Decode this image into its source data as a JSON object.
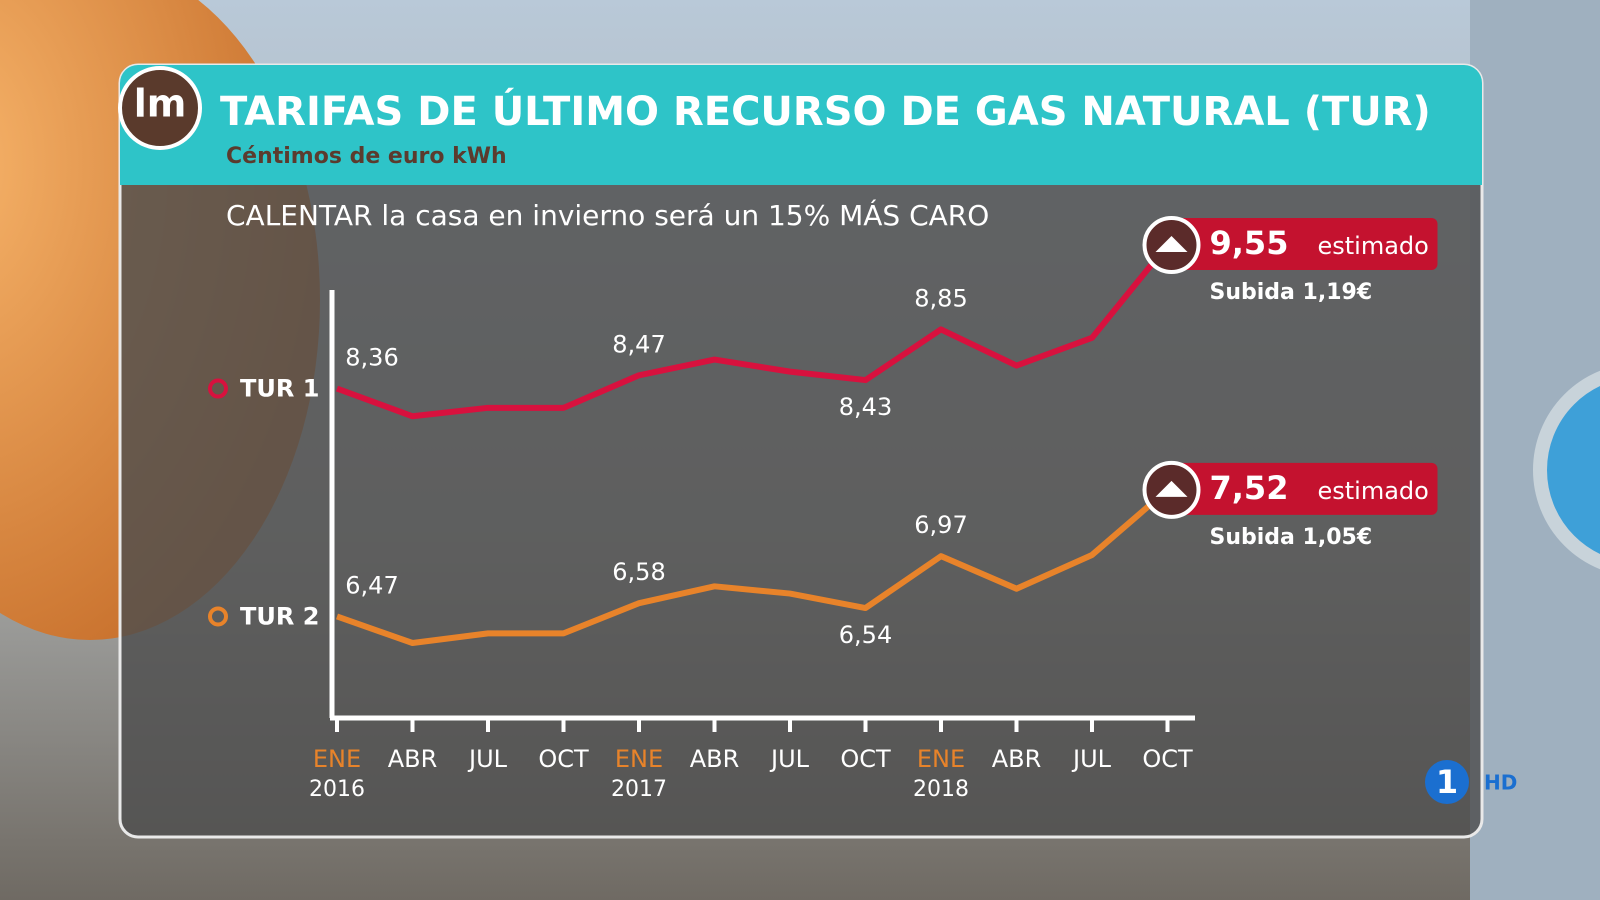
{
  "logo": "lm",
  "channel": "1",
  "channel_hd": "HD",
  "chart_data": {
    "type": "line",
    "title": "TARIFAS DE ÚLTIMO RECURSO DE GAS NATURAL (TUR)",
    "subtitle": "Céntimos de euro kWh",
    "headline": "CALENTAR la casa en invierno será un 15% MÁS CARO",
    "categories": [
      "ENE",
      "ABR",
      "JUL",
      "OCT",
      "ENE",
      "ABR",
      "JUL",
      "OCT",
      "ENE",
      "ABR",
      "JUL",
      "OCT"
    ],
    "year_labels": [
      "2016",
      null,
      null,
      null,
      "2017",
      null,
      null,
      null,
      "2018",
      null,
      null,
      null
    ],
    "year_color": "#e8832a",
    "series": [
      {
        "name": "TUR 1",
        "color": "#d8113e",
        "values": [
          8.36,
          8.13,
          8.2,
          8.2,
          8.47,
          8.6,
          8.5,
          8.43,
          8.85,
          8.55,
          8.78,
          9.55
        ],
        "value_labels": [
          "8,36",
          null,
          null,
          null,
          "8,47",
          null,
          null,
          "8,43",
          "8,85",
          null,
          null,
          "9,55"
        ],
        "end_note": "estimado",
        "change_label": "Subida 1,19€"
      },
      {
        "name": "TUR 2",
        "color": "#e8832a",
        "values": [
          6.47,
          6.25,
          6.33,
          6.33,
          6.58,
          6.72,
          6.66,
          6.54,
          6.97,
          6.7,
          6.98,
          7.52
        ],
        "value_labels": [
          "6,47",
          null,
          null,
          null,
          "6,58",
          null,
          null,
          "6,54",
          "6,97",
          null,
          null,
          "7,52"
        ],
        "end_note": "estimado",
        "change_label": "Subida 1,05€"
      }
    ]
  }
}
